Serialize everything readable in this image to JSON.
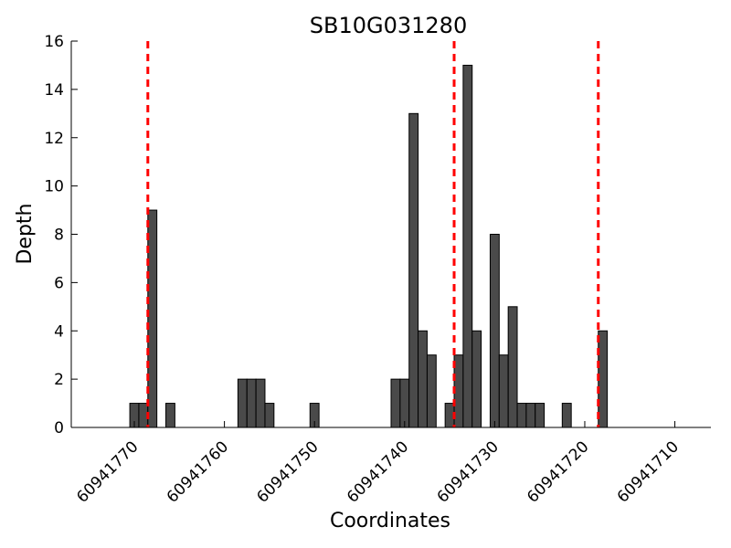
{
  "chart_data": {
    "type": "bar",
    "title": "SB10G031280",
    "xlabel": "Coordinates",
    "ylabel": "Depth",
    "x_reversed": true,
    "xlim": [
      60941777,
      60941706
    ],
    "ylim": [
      0,
      16
    ],
    "y_ticks": [
      0,
      2,
      4,
      6,
      8,
      10,
      12,
      14,
      16
    ],
    "x_ticks": [
      60941770,
      60941760,
      60941750,
      60941740,
      60941730,
      60941720,
      60941710
    ],
    "grid": false,
    "bar_color": "#4a4a4a",
    "bar_edge_color": "#000000",
    "marker_color": "#ff0000",
    "markers": [
      60941768.5,
      60941734.5,
      60941718.5
    ],
    "series": [
      {
        "x": [
          60941770,
          60941769,
          60941768,
          60941766,
          60941758,
          60941757,
          60941756,
          60941755,
          60941750,
          60941741,
          60941740,
          60941739,
          60941738,
          60941737,
          60941735,
          60941734,
          60941733,
          60941732,
          60941730,
          60941729,
          60941728,
          60941727,
          60941726,
          60941725,
          60941722,
          60941718
        ],
        "values": [
          1,
          1,
          9,
          1,
          2,
          2,
          2,
          1,
          1,
          2,
          2,
          13,
          4,
          3,
          1,
          3,
          15,
          4,
          8,
          3,
          5,
          1,
          1,
          1,
          1,
          4
        ]
      }
    ]
  }
}
